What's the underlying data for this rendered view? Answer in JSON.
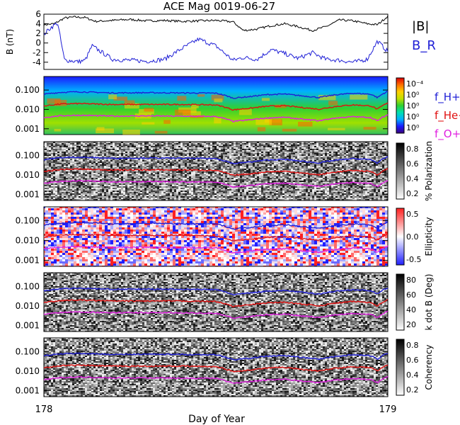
{
  "colors": {
    "btotal": "#000000",
    "br": "#1f1fd6",
    "fH": "#1f1fd6",
    "fHe": "#e01010",
    "fO": "#e020e0"
  },
  "chart_data": {
    "type": "line",
    "title": "ACE Mag 0019-06-27",
    "xlabel": "Day of Year",
    "xlim": [
      178,
      179
    ],
    "x_ticks": [
      "178",
      "179"
    ],
    "panels": [
      {
        "id": "b-field",
        "ylabel": "B (nT)",
        "ylim": [
          -5.5,
          6
        ],
        "y_ticks": [
          "6",
          "4",
          "2",
          "0",
          "-2",
          "-4"
        ],
        "legend": [
          "|B|",
          "B_R"
        ],
        "series": [
          {
            "name": "|B|",
            "x": [
              178.0,
              178.03,
              178.06,
              178.09,
              178.12,
              178.15,
              178.2,
              178.25,
              178.3,
              178.35,
              178.4,
              178.45,
              178.5,
              178.55,
              178.58,
              178.62,
              178.66,
              178.7,
              178.74,
              178.78,
              178.82,
              178.86,
              178.9,
              178.94,
              178.97,
              179.0
            ],
            "y": [
              3.8,
              4.0,
              5.2,
              5.4,
              5.3,
              4.5,
              4.7,
              4.9,
              4.6,
              4.7,
              4.5,
              4.6,
              4.7,
              4.4,
              2.6,
              2.9,
              3.6,
              4.0,
              3.4,
              2.6,
              3.4,
              4.8,
              4.6,
              4.0,
              3.8,
              5.6
            ]
          },
          {
            "name": "B_R",
            "x": [
              178.0,
              178.02,
              178.04,
              178.05,
              178.06,
              178.08,
              178.1,
              178.12,
              178.14,
              178.2,
              178.25,
              178.3,
              178.35,
              178.4,
              178.45,
              178.5,
              178.55,
              178.58,
              178.62,
              178.66,
              178.7,
              178.74,
              178.78,
              178.82,
              178.86,
              178.9,
              178.94,
              178.97,
              179.0
            ],
            "y": [
              1.8,
              3.2,
              4.2,
              0.2,
              -3.6,
              -3.7,
              -3.9,
              -3.6,
              -0.6,
              -3.4,
              -3.6,
              -3.8,
              -3.4,
              -1.2,
              0.8,
              -0.6,
              -3.6,
              -3.0,
              -3.4,
              -1.4,
              -2.2,
              -3.2,
              -2.0,
              -3.4,
              -3.6,
              -4.0,
              -3.4,
              0.4,
              -1.8
            ]
          }
        ]
      },
      {
        "id": "power",
        "ylabel": "",
        "ylim": [
          0.0005,
          0.5
        ],
        "scale": "log",
        "y_ticks": [
          "0.100",
          "0.010",
          "0.001"
        ],
        "colorbar_ticks": [
          "10⁻⁴",
          "10⁰",
          "10⁰",
          "10⁰",
          "10⁰"
        ],
        "legend": [
          "f_H+",
          "f_He+",
          "f_O+"
        ]
      },
      {
        "id": "polarization",
        "ylabel": "",
        "ylim": [
          0.0005,
          0.5
        ],
        "scale": "log",
        "y_ticks": [
          "0.100",
          "0.010",
          "0.001"
        ],
        "colorbar_label": "% Polarization",
        "colorbar_ticks": [
          "0.8",
          "0.6",
          "0.4",
          "0.2"
        ]
      },
      {
        "id": "ellipticity",
        "ylabel": "",
        "ylim": [
          0.0005,
          0.5
        ],
        "scale": "log",
        "y_ticks": [
          "0.100",
          "0.010",
          "0.001"
        ],
        "colorbar_label": "Ellipticity",
        "colorbar_ticks": [
          "0.5",
          "0.0",
          "-0.5"
        ]
      },
      {
        "id": "kdotb",
        "ylabel": "",
        "ylim": [
          0.0005,
          0.5
        ],
        "scale": "log",
        "y_ticks": [
          "0.100",
          "0.010",
          "0.001"
        ],
        "colorbar_label": "k dot B (Deg)",
        "colorbar_ticks": [
          "80",
          "60",
          "40",
          "20"
        ]
      },
      {
        "id": "coherency",
        "ylabel": "",
        "ylim": [
          0.0005,
          0.5
        ],
        "scale": "log",
        "y_ticks": [
          "0.100",
          "0.010",
          "0.001"
        ],
        "colorbar_label": "Coherency",
        "colorbar_ticks": [
          "0.8",
          "0.6",
          "0.4",
          "0.2"
        ]
      }
    ],
    "gyro_series": [
      {
        "name": "f_H+",
        "x": [
          178.0,
          178.05,
          178.1,
          178.2,
          178.3,
          178.4,
          178.5,
          178.55,
          178.6,
          178.65,
          178.7,
          178.75,
          178.8,
          178.85,
          178.9,
          178.95,
          178.97,
          179.0
        ],
        "y": [
          0.061,
          0.076,
          0.081,
          0.071,
          0.073,
          0.071,
          0.069,
          0.038,
          0.046,
          0.058,
          0.062,
          0.05,
          0.041,
          0.057,
          0.068,
          0.061,
          0.04,
          0.085
        ]
      },
      {
        "name": "f_He+",
        "x": [
          178.0,
          178.05,
          178.1,
          178.2,
          178.3,
          178.4,
          178.5,
          178.55,
          178.6,
          178.65,
          178.7,
          178.75,
          178.8,
          178.85,
          178.9,
          178.95,
          178.97,
          179.0
        ],
        "y": [
          0.015,
          0.019,
          0.02,
          0.018,
          0.018,
          0.018,
          0.017,
          0.0095,
          0.0115,
          0.0145,
          0.0155,
          0.0125,
          0.0102,
          0.0142,
          0.017,
          0.0152,
          0.01,
          0.021
        ]
      },
      {
        "name": "f_O+",
        "x": [
          178.0,
          178.05,
          178.1,
          178.2,
          178.3,
          178.4,
          178.5,
          178.55,
          178.6,
          178.65,
          178.7,
          178.75,
          178.8,
          178.85,
          178.9,
          178.95,
          178.97,
          179.0
        ],
        "y": [
          0.0038,
          0.0047,
          0.005,
          0.0045,
          0.0046,
          0.0044,
          0.0043,
          0.0024,
          0.0029,
          0.0036,
          0.0039,
          0.0031,
          0.0026,
          0.0036,
          0.0042,
          0.0038,
          0.0025,
          0.0053
        ]
      }
    ]
  }
}
